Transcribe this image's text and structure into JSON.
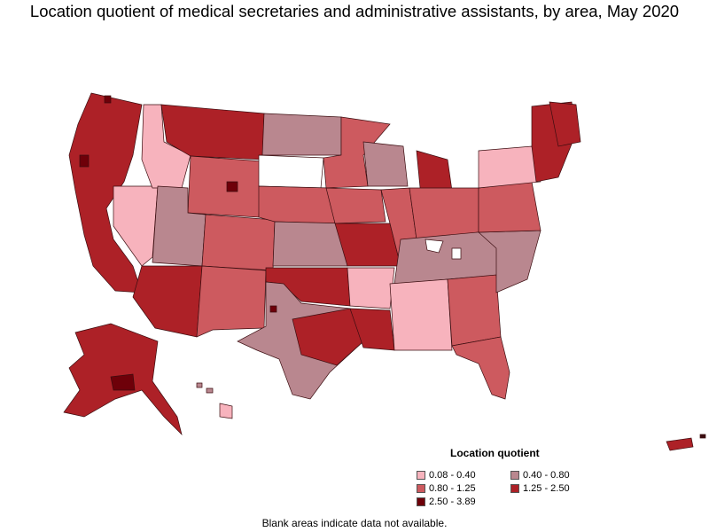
{
  "title": "Location quotient of medical secretaries and administrative assistants, by area, May 2020",
  "legend": {
    "title": "Location quotient",
    "items": [
      {
        "label": "0.08 - 0.40",
        "color": "#f7b3bd"
      },
      {
        "label": "0.40 - 0.80",
        "color": "#b9878f"
      },
      {
        "label": "0.80 - 1.25",
        "color": "#cd5a5f"
      },
      {
        "label": "1.25 - 2.50",
        "color": "#ad2127"
      },
      {
        "label": "2.50 - 3.89",
        "color": "#6e0009"
      }
    ]
  },
  "footnote": "Blank areas indicate data not available.",
  "colors": {
    "outline": "#3b0d10",
    "background": "#ffffff"
  }
}
